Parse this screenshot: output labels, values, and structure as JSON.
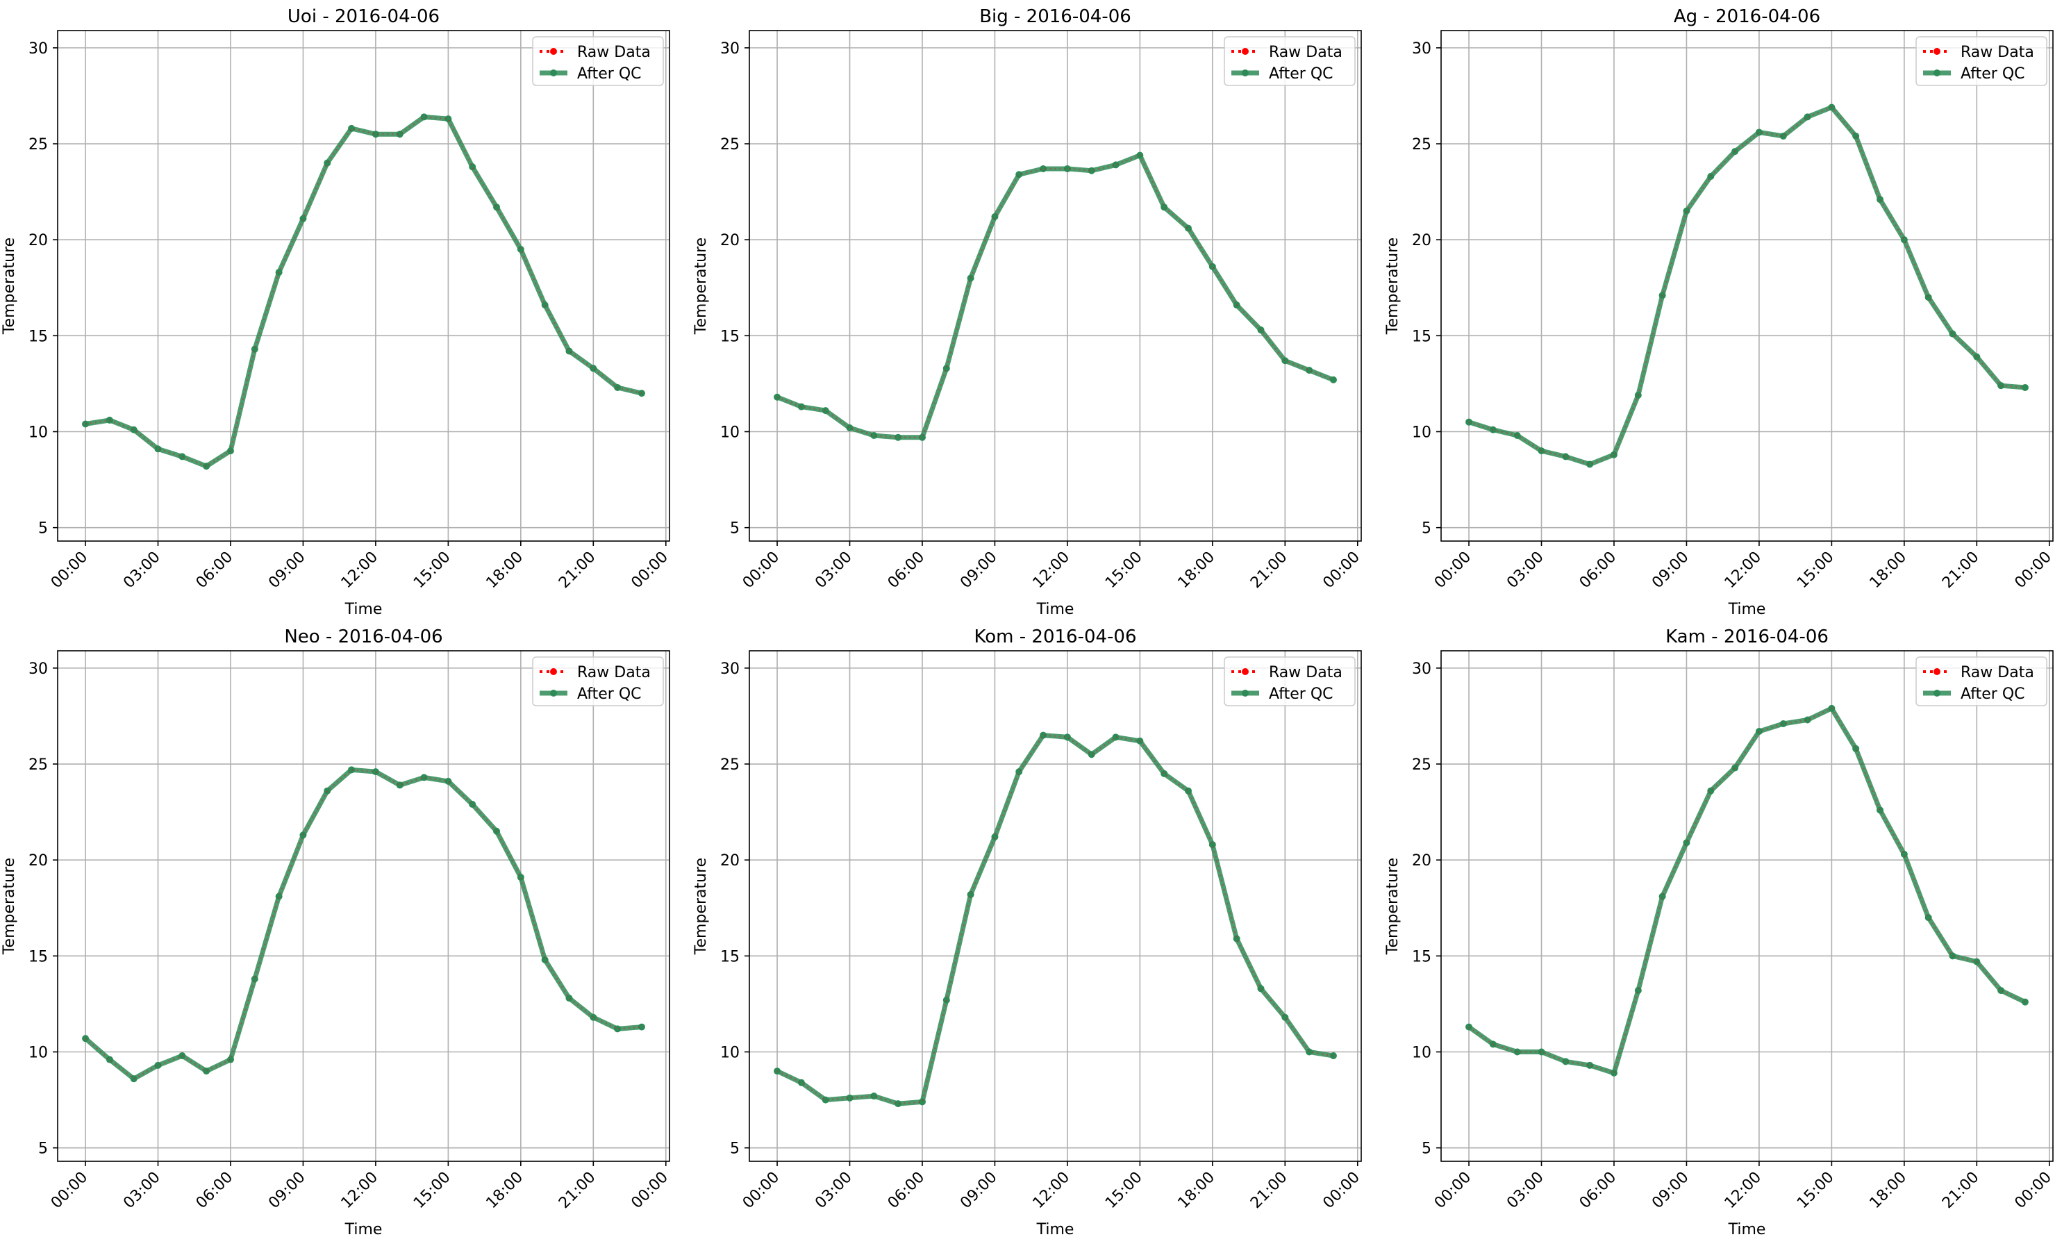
{
  "figure": {
    "legend": {
      "raw_label": "Raw Data",
      "qc_label": "After QC"
    },
    "colors": {
      "raw": "#ff0000",
      "qc": "#2e8b57",
      "grid": "#b0b0b0",
      "axis": "#000000"
    }
  },
  "chart_data": [
    {
      "type": "line",
      "title": "Uoi - 2016-04-06",
      "xlabel": "Time",
      "ylabel": "Temperature",
      "date": "2016-04-06",
      "ylim": [
        4.3,
        30.9
      ],
      "yticks": [
        5,
        10,
        15,
        20,
        25,
        30
      ],
      "xticks": [
        "00:00",
        "03:00",
        "06:00",
        "09:00",
        "12:00",
        "15:00",
        "18:00",
        "21:00",
        "00:00"
      ],
      "x_hours": [
        0,
        1,
        2,
        3,
        4,
        5,
        6,
        7,
        8,
        9,
        10,
        11,
        12,
        13,
        14,
        15,
        16,
        17,
        18,
        19,
        20,
        21,
        22,
        23
      ],
      "grid": true,
      "legend_position": "upper right",
      "series": [
        {
          "name": "Raw Data",
          "values": [
            10.4,
            10.6,
            10.1,
            9.1,
            8.7,
            8.2,
            9.0,
            14.3,
            18.3,
            21.1,
            24.0,
            25.8,
            25.5,
            25.5,
            26.4,
            26.3,
            23.8,
            21.7,
            19.5,
            16.6,
            14.2,
            13.3,
            12.3,
            12.0
          ]
        },
        {
          "name": "After QC",
          "values": [
            10.4,
            10.6,
            10.1,
            9.1,
            8.7,
            8.2,
            9.0,
            14.3,
            18.3,
            21.1,
            24.0,
            25.8,
            25.5,
            25.5,
            26.4,
            26.3,
            23.8,
            21.7,
            19.5,
            16.6,
            14.2,
            13.3,
            12.3,
            12.0
          ]
        }
      ]
    },
    {
      "type": "line",
      "title": "Big - 2016-04-06",
      "xlabel": "Time",
      "ylabel": "Temperature",
      "date": "2016-04-06",
      "ylim": [
        4.3,
        30.9
      ],
      "yticks": [
        5,
        10,
        15,
        20,
        25,
        30
      ],
      "xticks": [
        "00:00",
        "03:00",
        "06:00",
        "09:00",
        "12:00",
        "15:00",
        "18:00",
        "21:00",
        "00:00"
      ],
      "x_hours": [
        0,
        1,
        2,
        3,
        4,
        5,
        6,
        7,
        8,
        9,
        10,
        11,
        12,
        13,
        14,
        15,
        16,
        17,
        18,
        19,
        20,
        21,
        22,
        23
      ],
      "grid": true,
      "legend_position": "upper right",
      "series": [
        {
          "name": "Raw Data",
          "values": [
            11.8,
            11.3,
            11.1,
            10.2,
            9.8,
            9.7,
            9.7,
            13.3,
            18.0,
            21.2,
            23.4,
            23.7,
            23.7,
            23.6,
            23.9,
            24.4,
            21.7,
            20.6,
            18.6,
            16.6,
            15.3,
            13.7,
            13.2,
            12.7
          ]
        },
        {
          "name": "After QC",
          "values": [
            11.8,
            11.3,
            11.1,
            10.2,
            9.8,
            9.7,
            9.7,
            13.3,
            18.0,
            21.2,
            23.4,
            23.7,
            23.7,
            23.6,
            23.9,
            24.4,
            21.7,
            20.6,
            18.6,
            16.6,
            15.3,
            13.7,
            13.2,
            12.7
          ]
        }
      ]
    },
    {
      "type": "line",
      "title": "Ag - 2016-04-06",
      "xlabel": "Time",
      "ylabel": "Temperature",
      "date": "2016-04-06",
      "ylim": [
        4.3,
        30.9
      ],
      "yticks": [
        5,
        10,
        15,
        20,
        25,
        30
      ],
      "xticks": [
        "00:00",
        "03:00",
        "06:00",
        "09:00",
        "12:00",
        "15:00",
        "18:00",
        "21:00",
        "00:00"
      ],
      "x_hours": [
        0,
        1,
        2,
        3,
        4,
        5,
        6,
        7,
        8,
        9,
        10,
        11,
        12,
        13,
        14,
        15,
        16,
        17,
        18,
        19,
        20,
        21,
        22,
        23
      ],
      "grid": true,
      "legend_position": "upper right",
      "series": [
        {
          "name": "Raw Data",
          "values": [
            10.5,
            10.1,
            9.8,
            9.0,
            8.7,
            8.3,
            8.8,
            11.9,
            17.1,
            21.5,
            23.3,
            24.6,
            25.6,
            25.4,
            26.4,
            26.9,
            25.4,
            22.1,
            20.0,
            17.0,
            15.1,
            13.9,
            12.4,
            12.3
          ]
        },
        {
          "name": "After QC",
          "values": [
            10.5,
            10.1,
            9.8,
            9.0,
            8.7,
            8.3,
            8.8,
            11.9,
            17.1,
            21.5,
            23.3,
            24.6,
            25.6,
            25.4,
            26.4,
            26.9,
            25.4,
            22.1,
            20.0,
            17.0,
            15.1,
            13.9,
            12.4,
            12.3
          ]
        }
      ]
    },
    {
      "type": "line",
      "title": "Neo - 2016-04-06",
      "xlabel": "Time",
      "ylabel": "Temperature",
      "date": "2016-04-06",
      "ylim": [
        4.3,
        30.9
      ],
      "yticks": [
        5,
        10,
        15,
        20,
        25,
        30
      ],
      "xticks": [
        "00:00",
        "03:00",
        "06:00",
        "09:00",
        "12:00",
        "15:00",
        "18:00",
        "21:00",
        "00:00"
      ],
      "x_hours": [
        0,
        1,
        2,
        3,
        4,
        5,
        6,
        7,
        8,
        9,
        10,
        11,
        12,
        13,
        14,
        15,
        16,
        17,
        18,
        19,
        20,
        21,
        22,
        23
      ],
      "grid": true,
      "legend_position": "upper right",
      "series": [
        {
          "name": "Raw Data",
          "values": [
            10.7,
            9.6,
            8.6,
            9.3,
            9.8,
            9.0,
            9.6,
            13.8,
            18.1,
            21.3,
            23.6,
            24.7,
            24.6,
            23.9,
            24.3,
            24.1,
            22.9,
            21.5,
            19.1,
            14.8,
            12.8,
            11.8,
            11.2,
            11.3
          ]
        },
        {
          "name": "After QC",
          "values": [
            10.7,
            9.6,
            8.6,
            9.3,
            9.8,
            9.0,
            9.6,
            13.8,
            18.1,
            21.3,
            23.6,
            24.7,
            24.6,
            23.9,
            24.3,
            24.1,
            22.9,
            21.5,
            19.1,
            14.8,
            12.8,
            11.8,
            11.2,
            11.3
          ]
        }
      ]
    },
    {
      "type": "line",
      "title": "Kom - 2016-04-06",
      "xlabel": "Time",
      "ylabel": "Temperature",
      "date": "2016-04-06",
      "ylim": [
        4.3,
        30.9
      ],
      "yticks": [
        5,
        10,
        15,
        20,
        25,
        30
      ],
      "xticks": [
        "00:00",
        "03:00",
        "06:00",
        "09:00",
        "12:00",
        "15:00",
        "18:00",
        "21:00",
        "00:00"
      ],
      "x_hours": [
        0,
        1,
        2,
        3,
        4,
        5,
        6,
        7,
        8,
        9,
        10,
        11,
        12,
        13,
        14,
        15,
        16,
        17,
        18,
        19,
        20,
        21,
        22,
        23
      ],
      "grid": true,
      "legend_position": "upper right",
      "series": [
        {
          "name": "Raw Data",
          "values": [
            9.0,
            8.4,
            7.5,
            7.6,
            7.7,
            7.3,
            7.4,
            12.7,
            18.2,
            21.2,
            24.6,
            26.5,
            26.4,
            25.5,
            26.4,
            26.2,
            24.5,
            23.6,
            20.8,
            15.9,
            13.3,
            11.8,
            10.0,
            9.8
          ]
        },
        {
          "name": "After QC",
          "values": [
            9.0,
            8.4,
            7.5,
            7.6,
            7.7,
            7.3,
            7.4,
            12.7,
            18.2,
            21.2,
            24.6,
            26.5,
            26.4,
            25.5,
            26.4,
            26.2,
            24.5,
            23.6,
            20.8,
            15.9,
            13.3,
            11.8,
            10.0,
            9.8
          ]
        }
      ]
    },
    {
      "type": "line",
      "title": "Kam - 2016-04-06",
      "xlabel": "Time",
      "ylabel": "Temperature",
      "date": "2016-04-06",
      "ylim": [
        4.3,
        30.9
      ],
      "yticks": [
        5,
        10,
        15,
        20,
        25,
        30
      ],
      "xticks": [
        "00:00",
        "03:00",
        "06:00",
        "09:00",
        "12:00",
        "15:00",
        "18:00",
        "21:00",
        "00:00"
      ],
      "x_hours": [
        0,
        1,
        2,
        3,
        4,
        5,
        6,
        7,
        8,
        9,
        10,
        11,
        12,
        13,
        14,
        15,
        16,
        17,
        18,
        19,
        20,
        21,
        22,
        23
      ],
      "grid": true,
      "legend_position": "upper right",
      "series": [
        {
          "name": "Raw Data",
          "values": [
            11.3,
            10.4,
            10.0,
            10.0,
            9.5,
            9.3,
            8.9,
            13.2,
            18.1,
            20.9,
            23.6,
            24.8,
            26.7,
            27.1,
            27.3,
            27.9,
            25.8,
            22.6,
            20.3,
            17.0,
            15.0,
            14.7,
            13.2,
            12.6
          ]
        },
        {
          "name": "After QC",
          "values": [
            11.3,
            10.4,
            10.0,
            10.0,
            9.5,
            9.3,
            8.9,
            13.2,
            18.1,
            20.9,
            23.6,
            24.8,
            26.7,
            27.1,
            27.3,
            27.9,
            25.8,
            22.6,
            20.3,
            17.0,
            15.0,
            14.7,
            13.2,
            12.6
          ]
        }
      ]
    }
  ]
}
